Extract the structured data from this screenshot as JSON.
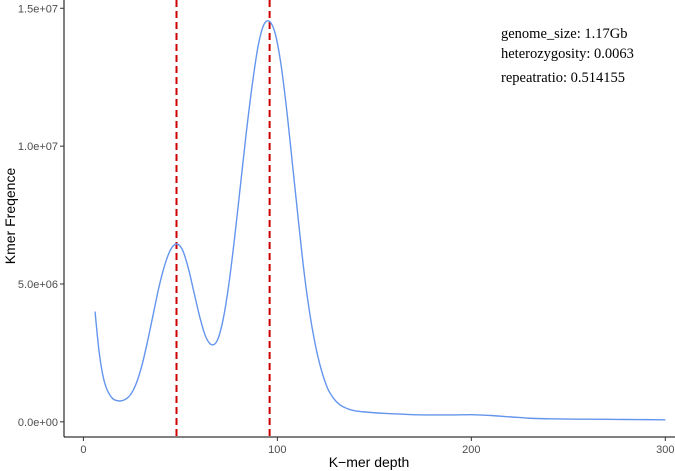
{
  "chart_data": {
    "type": "line",
    "title": "",
    "xlabel": "K−mer depth",
    "ylabel": "Kmer Freqence",
    "xlim": [
      -10,
      305
    ],
    "ylim": [
      -550000,
      15300000
    ],
    "x_ticks": [
      0,
      100,
      200,
      300
    ],
    "y_ticks": [
      0,
      5000000,
      10000000,
      15000000
    ],
    "y_tick_labels": [
      "0.0e+00",
      "5.0e+06",
      "1.0e+07",
      "1.5e+07"
    ],
    "grid": false,
    "series": [
      {
        "color": "#6495ED",
        "x": [
          6,
          8,
          10,
          12,
          15,
          18,
          21,
          24,
          27,
          30,
          33,
          36,
          39,
          42,
          45,
          48,
          51,
          54,
          57,
          60,
          63,
          66,
          69,
          72,
          75,
          78,
          81,
          84,
          87,
          90,
          93,
          96,
          99,
          102,
          105,
          108,
          111,
          114,
          117,
          120,
          123,
          126,
          129,
          132,
          135,
          140,
          150,
          160,
          170,
          180,
          190,
          200,
          210,
          220,
          230,
          240,
          250,
          260,
          270,
          280,
          290,
          300
        ],
        "y": [
          4000000,
          2600000,
          1700000,
          1200000,
          850000,
          760000,
          790000,
          960000,
          1350000,
          2000000,
          2900000,
          3900000,
          4900000,
          5700000,
          6250000,
          6450000,
          6250000,
          5600000,
          4700000,
          3800000,
          3100000,
          2800000,
          2950000,
          3700000,
          5000000,
          6700000,
          8600000,
          10500000,
          12200000,
          13600000,
          14400000,
          14520000,
          14050000,
          12900000,
          11200000,
          9200000,
          7200000,
          5300000,
          3800000,
          2650000,
          1800000,
          1200000,
          850000,
          630000,
          510000,
          400000,
          330000,
          290000,
          260000,
          250000,
          250000,
          260000,
          230000,
          180000,
          130000,
          110000,
          100000,
          95000,
          90000,
          85000,
          80000,
          75000
        ]
      }
    ],
    "vlines": [
      {
        "x": 48,
        "color": "#CC0000"
      },
      {
        "x": 96,
        "color": "#CC0000"
      }
    ],
    "annotations": [
      "genome_size: 1.17Gb",
      "heterozygosity: 0.0063",
      "repeatratio: 0.514155"
    ]
  }
}
